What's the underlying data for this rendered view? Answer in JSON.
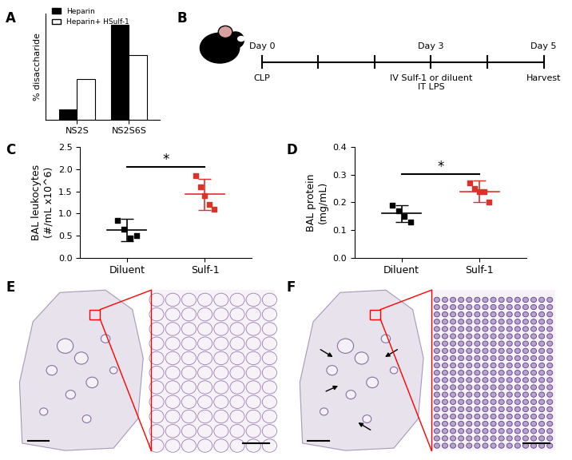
{
  "panel_labels": [
    "A",
    "B",
    "C",
    "D",
    "E",
    "F"
  ],
  "chart_data": [
    {
      "type": "bar",
      "ylabel": "% disaccharide",
      "categories": [
        "NS2S",
        "NS2S6S"
      ],
      "series": [
        {
          "name": "Heparin",
          "color": "#000000",
          "values": [
            10,
            90
          ]
        },
        {
          "name": "Heparin+ HSulf-1",
          "color": "#ffffff",
          "values": [
            38,
            61
          ]
        }
      ],
      "ylim": [
        0,
        100
      ],
      "yticks": [],
      "tick_labels": "x",
      "legend": "upper left"
    },
    {
      "type": "scatter",
      "ylabel": "BAL leukocytes\n(#/mL x10^6)",
      "categories": [
        "Diluent",
        "Sulf-1"
      ],
      "points": [
        [
          0.85,
          0.65,
          0.45,
          0.5
        ],
        [
          1.85,
          1.6,
          1.4,
          1.2,
          1.1
        ]
      ],
      "means": [
        0.63,
        1.43
      ],
      "sd": [
        0.25,
        0.35
      ],
      "colors": [
        "#000000",
        "#e0302a"
      ],
      "marker": "s",
      "annotation": "*",
      "ylim": [
        0.0,
        2.5
      ],
      "yticks": [
        0.0,
        0.5,
        1.0,
        1.5,
        2.0,
        2.5
      ]
    },
    {
      "type": "scatter",
      "ylabel": "BAL protein\n(mg/mL)",
      "categories": [
        "Diluent",
        "Sulf-1"
      ],
      "points": [
        [
          0.19,
          0.17,
          0.15,
          0.13
        ],
        [
          0.27,
          0.25,
          0.24,
          0.24,
          0.2
        ]
      ],
      "means": [
        0.16,
        0.24
      ],
      "sd": [
        0.03,
        0.04
      ],
      "colors": [
        "#000000",
        "#e0302a"
      ],
      "marker": "s",
      "annotation": "*",
      "ylim": [
        0.0,
        0.4
      ],
      "yticks": [
        0.0,
        0.1,
        0.2,
        0.3,
        0.4
      ]
    }
  ],
  "timeline": {
    "days": [
      0,
      3,
      5
    ],
    "labels": [
      "Day 0",
      "Day 3",
      "Day 5"
    ],
    "events": [
      "CLP",
      "IV Sulf-1 or diluent\nIT LPS",
      "Harvest"
    ]
  }
}
